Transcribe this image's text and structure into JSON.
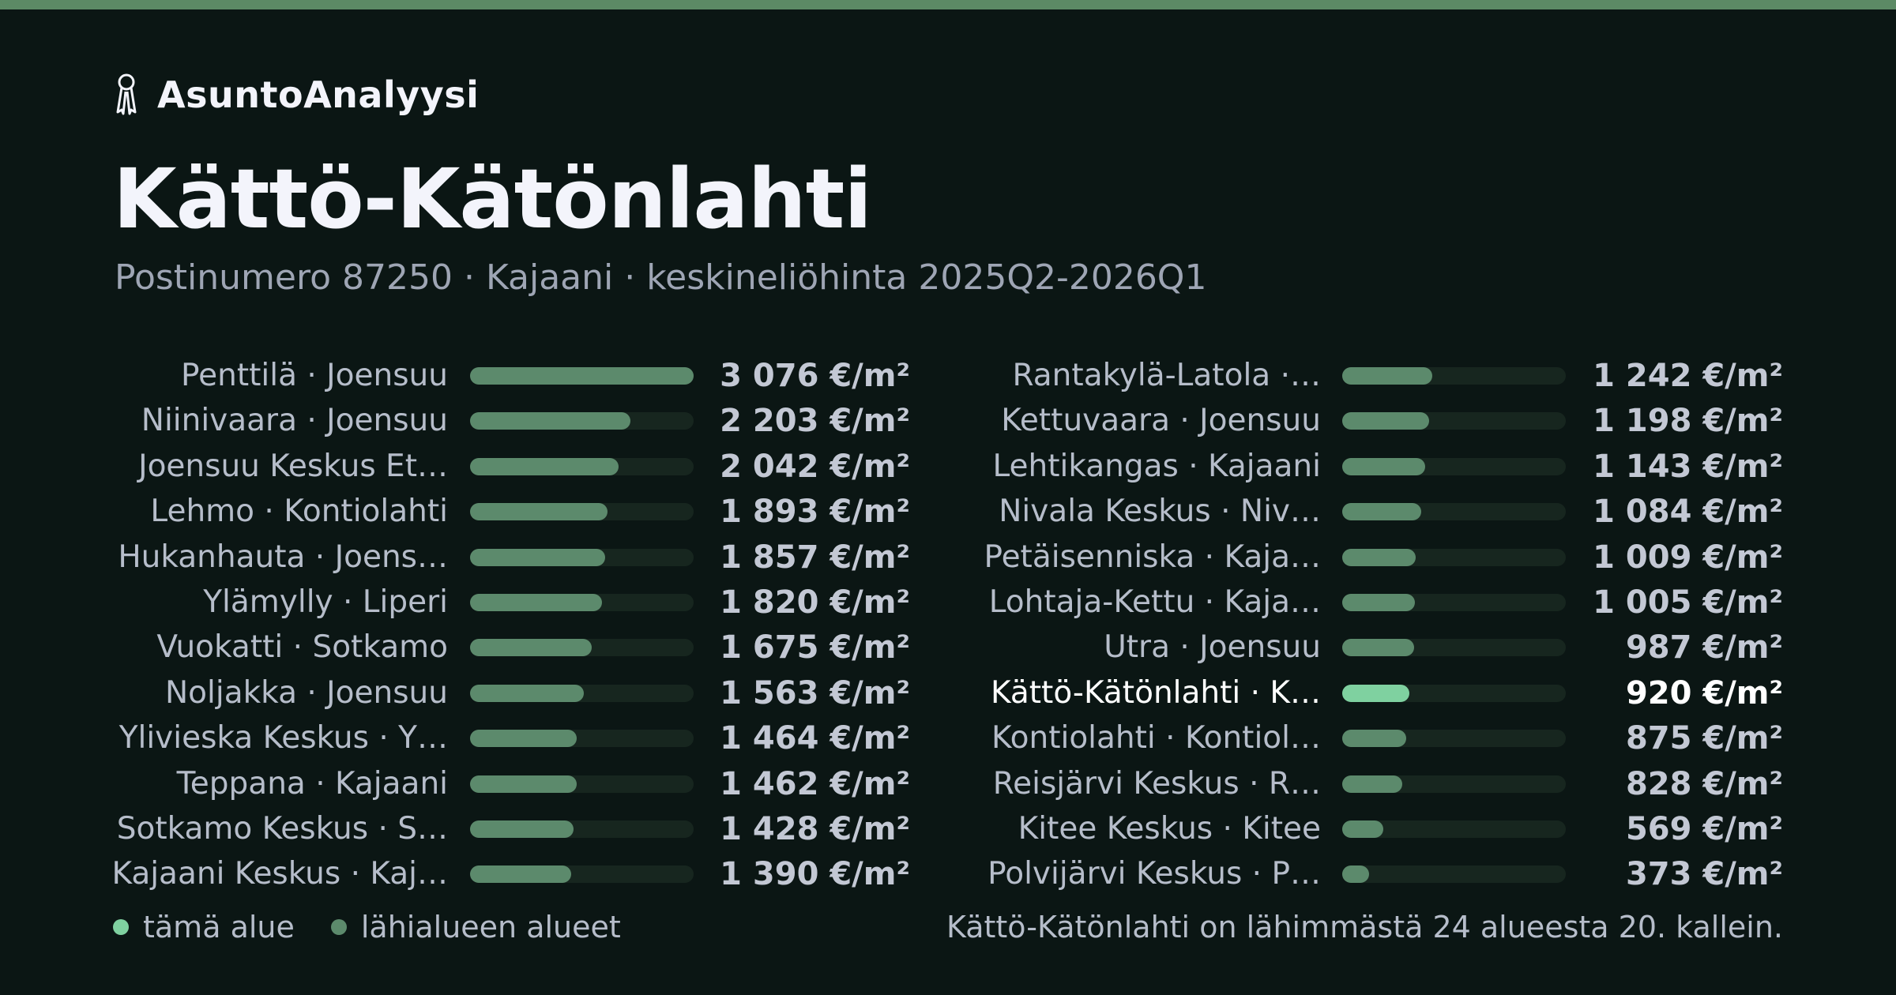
{
  "brand": {
    "name": "AsuntoAnalyysi",
    "icon": "keys-icon"
  },
  "title": "Kättö-Kätönlahti",
  "subtitle": "Postinumero 87250 · Kajaani · keskineliöhinta 2025Q2-2026Q1",
  "colors": {
    "background": "#0b1614",
    "accent_bar": "#5c8a65",
    "bar_fill": "#5c8a6c",
    "bar_track": "#17261f",
    "highlight": "#7fd1a0"
  },
  "chart_data": {
    "type": "bar",
    "orientation": "horizontal",
    "unit": "€/m²",
    "xlim": [
      0,
      3076
    ],
    "categories": [
      "Penttilä · Joensuu",
      "Niinivaara · Joensuu",
      "Joensuu Keskus Et…",
      "Lehmo · Kontiolahti",
      "Hukanhauta · Joens…",
      "Ylämylly · Liperi",
      "Vuokatti · Sotkamo",
      "Noljakka · Joensuu",
      "Ylivieska Keskus · Y…",
      "Teppana · Kajaani",
      "Sotkamo Keskus · S…",
      "Kajaani Keskus · Kaj…",
      "Rantakylä-Latola ·…",
      "Kettuvaara · Joensuu",
      "Lehtikangas · Kajaani",
      "Nivala Keskus · Niv…",
      "Petäisenniska · Kaja…",
      "Lohtaja-Kettu · Kaja…",
      "Utra · Joensuu",
      "Kättö-Kätönlahti · K…",
      "Kontiolahti · Kontiol…",
      "Reisjärvi Keskus · R…",
      "Kitee Keskus · Kitee",
      "Polvijärvi Keskus · P…"
    ],
    "values": [
      3076,
      2203,
      2042,
      1893,
      1857,
      1820,
      1675,
      1563,
      1464,
      1462,
      1428,
      1390,
      1242,
      1198,
      1143,
      1084,
      1009,
      1005,
      987,
      920,
      875,
      828,
      569,
      373
    ],
    "value_labels": [
      "3 076 €/m²",
      "2 203 €/m²",
      "2 042 €/m²",
      "1 893 €/m²",
      "1 857 €/m²",
      "1 820 €/m²",
      "1 675 €/m²",
      "1 563 €/m²",
      "1 464 €/m²",
      "1 462 €/m²",
      "1 428 €/m²",
      "1 390 €/m²",
      "1 242 €/m²",
      "1 198 €/m²",
      "1 143 €/m²",
      "1 084 €/m²",
      "1 009 €/m²",
      "1 005 €/m²",
      "987 €/m²",
      "920 €/m²",
      "875 €/m²",
      "828 €/m²",
      "569 €/m²",
      "373 €/m²"
    ],
    "highlight_index": 19,
    "columns": 2,
    "legend": {
      "placement": "bottom-left",
      "entries": [
        "tämä alue",
        "lähialueen alueet"
      ]
    }
  },
  "footnote": "Kättö-Kätönlahti on lähimmästä 24 alueesta 20. kallein."
}
